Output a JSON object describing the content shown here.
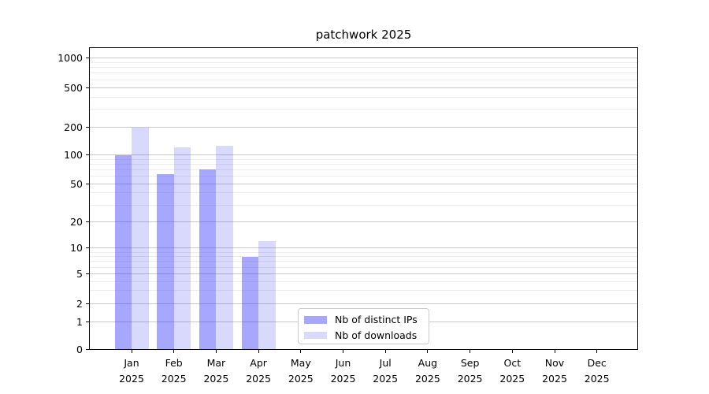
{
  "chart_data": {
    "type": "bar",
    "title": "patchwork 2025",
    "categories": [
      "Jan",
      "Feb",
      "Mar",
      "Apr",
      "May",
      "Jun",
      "Jul",
      "Aug",
      "Sep",
      "Oct",
      "Nov",
      "Dec"
    ],
    "x_tick_year_line": "2025",
    "series": [
      {
        "name": "Nb of distinct IPs",
        "color": "#3333fa",
        "alpha": 0.43,
        "values": [
          100,
          63,
          71,
          8,
          0,
          0,
          0,
          0,
          0,
          0,
          0,
          0
        ]
      },
      {
        "name": "Nb of downloads",
        "color": "#3333fa",
        "alpha": 0.19,
        "values": [
          195,
          121,
          125,
          12,
          0,
          0,
          0,
          0,
          0,
          0,
          0,
          0
        ]
      }
    ],
    "xlabel": "",
    "ylabel": "",
    "yscale": "symlog",
    "yticks": [
      0,
      1,
      2,
      5,
      10,
      20,
      50,
      100,
      200,
      500,
      1000
    ],
    "minor_gridline_values": [
      3,
      4,
      6,
      7,
      8,
      9,
      30,
      40,
      60,
      70,
      80,
      90,
      300,
      400,
      600,
      700,
      800,
      900
    ],
    "ylim": [
      0,
      1250
    ],
    "grid": "major+minor",
    "legend_position": "lower center"
  },
  "colors": {
    "background": "#ffffff",
    "axis": "#000000",
    "text": "#000000",
    "grid_major": "#c9c9c9",
    "grid_minor": "#ededed",
    "legend_border": "#cccccc",
    "bar_distinct_ips_rendered": "#a7a7f8",
    "bar_downloads_rendered": "#d8d8fa"
  }
}
